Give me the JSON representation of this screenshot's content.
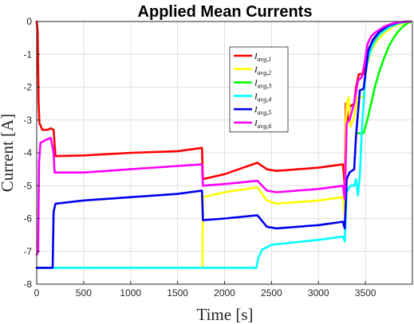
{
  "chart_data": {
    "type": "line",
    "title": "Applied Mean Currents",
    "xlabel": "Time [s]",
    "ylabel": "Current [A]",
    "xlim": [
      0,
      4000
    ],
    "ylim": [
      -8,
      0
    ],
    "xticks": [
      0,
      500,
      1000,
      1500,
      2000,
      2500,
      3000,
      3500
    ],
    "yticks": [
      0,
      -1,
      -2,
      -3,
      -4,
      -5,
      -6,
      -7,
      -8
    ],
    "grid": true,
    "legend": {
      "position": "top-right"
    },
    "series": [
      {
        "name": "I_avg,1",
        "color": "#ff0000",
        "points": [
          [
            0,
            0
          ],
          [
            10,
            -0.3
          ],
          [
            20,
            -2.5
          ],
          [
            30,
            -3.1
          ],
          [
            60,
            -3.3
          ],
          [
            120,
            -3.3
          ],
          [
            150,
            -3.25
          ],
          [
            180,
            -3.3
          ],
          [
            200,
            -4.1
          ],
          [
            500,
            -4.08
          ],
          [
            1000,
            -4.0
          ],
          [
            1500,
            -3.95
          ],
          [
            1760,
            -3.85
          ],
          [
            1770,
            -4.8
          ],
          [
            2000,
            -4.65
          ],
          [
            2350,
            -4.3
          ],
          [
            2450,
            -4.5
          ],
          [
            2550,
            -4.55
          ],
          [
            3000,
            -4.45
          ],
          [
            3260,
            -4.35
          ],
          [
            3280,
            -5.0
          ],
          [
            3290,
            -2.5
          ],
          [
            3300,
            -3.1
          ],
          [
            3320,
            -3.0
          ],
          [
            3330,
            -2.6
          ],
          [
            3380,
            -2.5
          ],
          [
            3400,
            -2.0
          ],
          [
            3430,
            -1.6
          ],
          [
            3480,
            -1.6
          ],
          [
            3500,
            -1.2
          ],
          [
            3540,
            -0.8
          ],
          [
            3600,
            -0.5
          ],
          [
            3700,
            -0.25
          ],
          [
            3800,
            -0.1
          ],
          [
            3900,
            -0.03
          ],
          [
            3980,
            0
          ]
        ]
      },
      {
        "name": "I_avg,2",
        "color": "#ffff00",
        "points": [
          [
            1765,
            -7.5
          ],
          [
            1770,
            -5.35
          ],
          [
            2000,
            -5.2
          ],
          [
            2350,
            -5.05
          ],
          [
            2450,
            -5.45
          ],
          [
            2550,
            -5.55
          ],
          [
            3000,
            -5.45
          ],
          [
            3260,
            -5.35
          ],
          [
            3280,
            -5.9
          ],
          [
            3290,
            -3.0
          ],
          [
            3300,
            -2.5
          ],
          [
            3320,
            -2.3
          ],
          [
            3340,
            -3.2
          ],
          [
            3380,
            -2.9
          ],
          [
            3420,
            -2.3
          ],
          [
            3480,
            -2.3
          ],
          [
            3510,
            -1.4
          ],
          [
            3560,
            -0.9
          ],
          [
            3620,
            -0.6
          ],
          [
            3700,
            -0.35
          ],
          [
            3800,
            -0.15
          ],
          [
            3900,
            -0.05
          ],
          [
            3980,
            0
          ]
        ]
      },
      {
        "name": "I_avg,3",
        "color": "#00ff00",
        "points": [
          [
            3420,
            -3.4
          ],
          [
            3480,
            -3.4
          ],
          [
            3520,
            -3.0
          ],
          [
            3560,
            -2.5
          ],
          [
            3600,
            -2.0
          ],
          [
            3650,
            -1.5
          ],
          [
            3700,
            -1.1
          ],
          [
            3750,
            -0.75
          ],
          [
            3800,
            -0.5
          ],
          [
            3850,
            -0.3
          ],
          [
            3900,
            -0.15
          ],
          [
            3950,
            -0.05
          ],
          [
            3990,
            0
          ]
        ]
      },
      {
        "name": "I_avg,4",
        "color": "#00ffff",
        "points": [
          [
            0,
            -7.5
          ],
          [
            500,
            -7.5
          ],
          [
            1000,
            -7.5
          ],
          [
            1500,
            -7.5
          ],
          [
            2000,
            -7.5
          ],
          [
            2340,
            -7.5
          ],
          [
            2360,
            -7.2
          ],
          [
            2400,
            -6.95
          ],
          [
            2500,
            -6.8
          ],
          [
            3000,
            -6.65
          ],
          [
            3260,
            -6.55
          ],
          [
            3280,
            -6.7
          ],
          [
            3300,
            -5.2
          ],
          [
            3340,
            -5.0
          ],
          [
            3380,
            -5.0
          ],
          [
            3400,
            -4.8
          ],
          [
            3420,
            -5.3
          ],
          [
            3440,
            -4.7
          ],
          [
            3460,
            -3.4
          ],
          [
            3480,
            -2.5
          ],
          [
            3500,
            -1.6
          ],
          [
            3530,
            -1.1
          ],
          [
            3580,
            -0.7
          ],
          [
            3650,
            -0.4
          ],
          [
            3750,
            -0.18
          ],
          [
            3850,
            -0.06
          ],
          [
            3950,
            0
          ]
        ]
      },
      {
        "name": "I_avg,5",
        "color": "#0000ee",
        "points": [
          [
            0,
            -7.5
          ],
          [
            170,
            -7.5
          ],
          [
            180,
            -5.8
          ],
          [
            200,
            -5.55
          ],
          [
            500,
            -5.45
          ],
          [
            1000,
            -5.35
          ],
          [
            1500,
            -5.25
          ],
          [
            1760,
            -5.15
          ],
          [
            1770,
            -6.05
          ],
          [
            2000,
            -6.0
          ],
          [
            2350,
            -5.9
          ],
          [
            2450,
            -6.25
          ],
          [
            2550,
            -6.3
          ],
          [
            3000,
            -6.2
          ],
          [
            3260,
            -6.1
          ],
          [
            3280,
            -6.3
          ],
          [
            3300,
            -4.8
          ],
          [
            3330,
            -4.6
          ],
          [
            3380,
            -4.5
          ],
          [
            3400,
            -3.5
          ],
          [
            3440,
            -2.1
          ],
          [
            3480,
            -2.05
          ],
          [
            3500,
            -1.6
          ],
          [
            3530,
            -0.9
          ],
          [
            3580,
            -0.55
          ],
          [
            3650,
            -0.3
          ],
          [
            3750,
            -0.12
          ],
          [
            3850,
            -0.03
          ],
          [
            3950,
            0
          ]
        ]
      },
      {
        "name": "I_avg,6",
        "color": "#ff00ff",
        "points": [
          [
            0,
            -7.1
          ],
          [
            15,
            -7.0
          ],
          [
            25,
            -4.3
          ],
          [
            40,
            -3.7
          ],
          [
            100,
            -3.6
          ],
          [
            150,
            -3.55
          ],
          [
            180,
            -4.0
          ],
          [
            190,
            -4.6
          ],
          [
            500,
            -4.6
          ],
          [
            1000,
            -4.5
          ],
          [
            1500,
            -4.4
          ],
          [
            1760,
            -4.35
          ],
          [
            1770,
            -5.0
          ],
          [
            2000,
            -4.95
          ],
          [
            2350,
            -4.85
          ],
          [
            2450,
            -5.15
          ],
          [
            2550,
            -5.2
          ],
          [
            3000,
            -5.1
          ],
          [
            3260,
            -5.0
          ],
          [
            3280,
            -5.4
          ],
          [
            3300,
            -3.1
          ],
          [
            3330,
            -3.0
          ],
          [
            3380,
            -2.5
          ],
          [
            3420,
            -1.8
          ],
          [
            3460,
            -1.7
          ],
          [
            3490,
            -1.3
          ],
          [
            3520,
            -0.7
          ],
          [
            3560,
            -0.45
          ],
          [
            3620,
            -0.3
          ],
          [
            3700,
            -0.15
          ],
          [
            3800,
            -0.05
          ],
          [
            3900,
            -0.01
          ],
          [
            3980,
            0
          ]
        ]
      }
    ]
  }
}
